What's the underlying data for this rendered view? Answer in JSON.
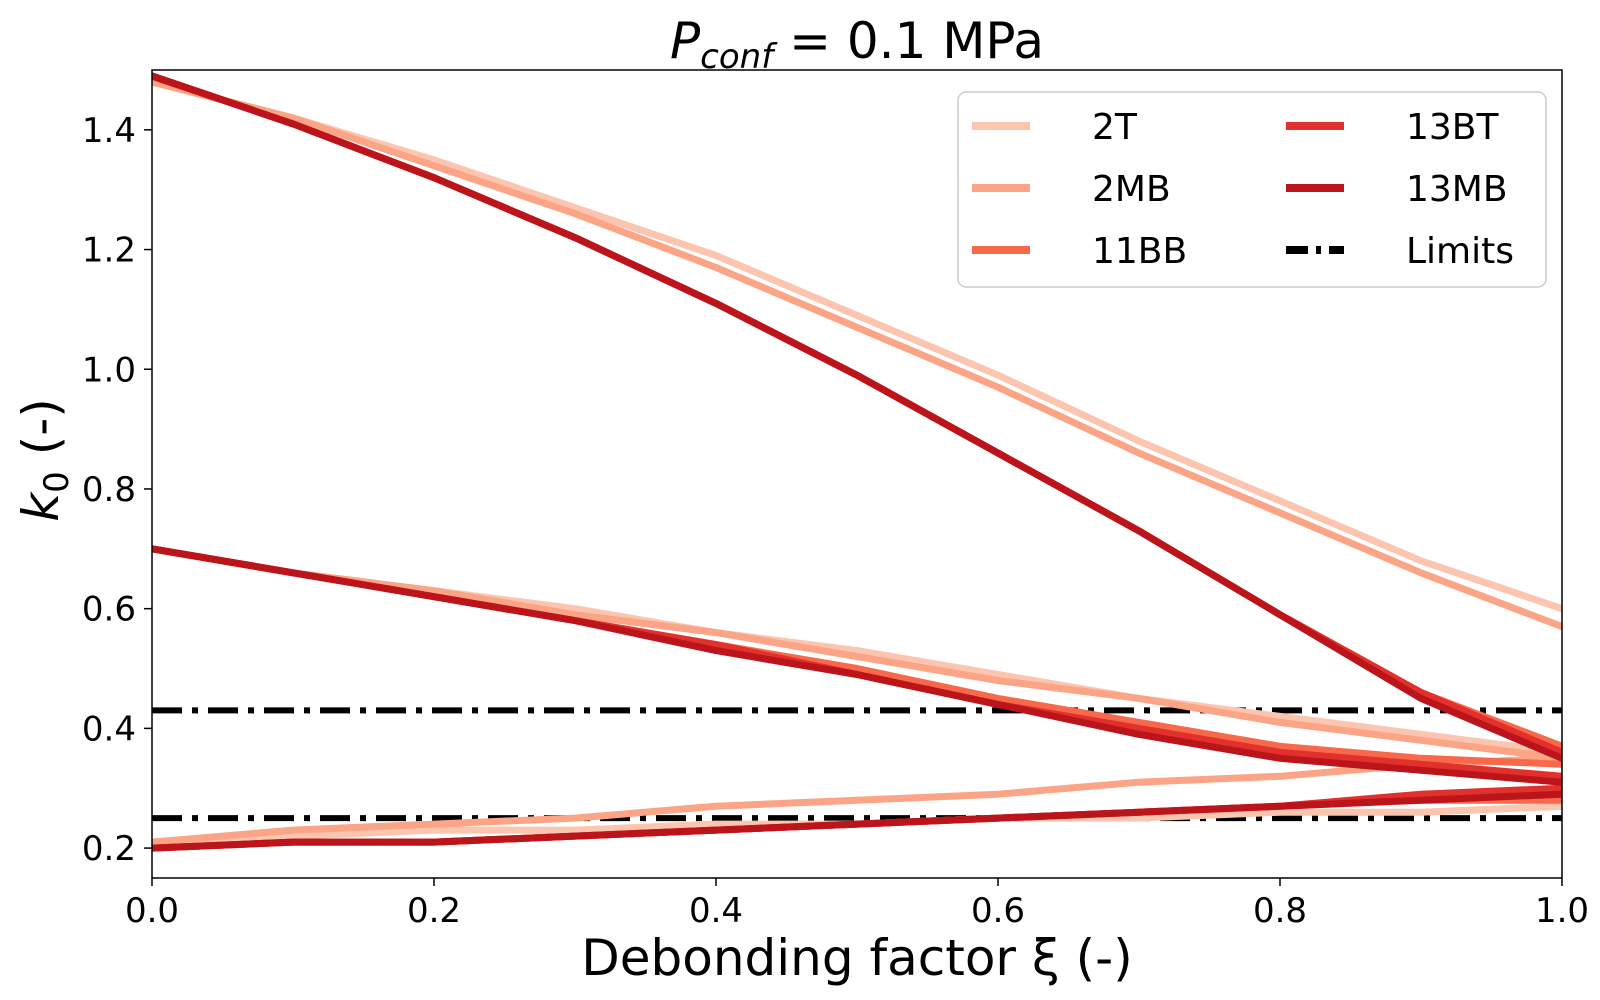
{
  "chart_data": {
    "type": "line",
    "title": {
      "main": "P",
      "subscript": "conf",
      "suffix": " = 0.1 MPa"
    },
    "xlabel": "Debonding factor ξ (-)",
    "ylabel": {
      "main": "k",
      "subscript": "0",
      "suffix": " (-)"
    },
    "xlim": [
      0.0,
      1.0
    ],
    "ylim": [
      0.15,
      1.5
    ],
    "xticks": [
      0.0,
      0.2,
      0.4,
      0.6,
      0.8,
      1.0
    ],
    "xtick_labels": [
      "0.0",
      "0.2",
      "0.4",
      "0.6",
      "0.8",
      "1.0"
    ],
    "yticks": [
      0.2,
      0.4,
      0.6,
      0.8,
      1.0,
      1.2,
      1.4
    ],
    "ytick_labels": [
      "0.2",
      "0.4",
      "0.6",
      "0.8",
      "1.0",
      "1.2",
      "1.4"
    ],
    "x": [
      0.0,
      0.1,
      0.2,
      0.3,
      0.4,
      0.5,
      0.6,
      0.7,
      0.8,
      0.9,
      1.0
    ],
    "legend_position": "top-right",
    "series": [
      {
        "name": "2T",
        "color": "#fcc5b0",
        "curves": [
          [
            1.48,
            1.42,
            1.35,
            1.27,
            1.19,
            1.09,
            0.99,
            0.88,
            0.78,
            0.68,
            0.6
          ],
          [
            0.7,
            0.66,
            0.63,
            0.6,
            0.56,
            0.53,
            0.49,
            0.45,
            0.42,
            0.39,
            0.36
          ],
          [
            0.21,
            0.22,
            0.23,
            0.23,
            0.24,
            0.24,
            0.25,
            0.25,
            0.26,
            0.26,
            0.27
          ]
        ]
      },
      {
        "name": "2MB",
        "color": "#fba486",
        "curves": [
          [
            1.48,
            1.42,
            1.34,
            1.26,
            1.17,
            1.07,
            0.97,
            0.86,
            0.76,
            0.66,
            0.57
          ],
          [
            0.7,
            0.66,
            0.63,
            0.59,
            0.56,
            0.52,
            0.48,
            0.45,
            0.41,
            0.38,
            0.35
          ],
          [
            0.21,
            0.23,
            0.24,
            0.25,
            0.27,
            0.28,
            0.29,
            0.31,
            0.32,
            0.34,
            0.35
          ]
        ]
      },
      {
        "name": "11BB",
        "color": "#f7694a",
        "curves": [
          [
            1.49,
            1.41,
            1.32,
            1.22,
            1.11,
            0.99,
            0.86,
            0.73,
            0.59,
            0.46,
            0.37
          ],
          [
            0.7,
            0.66,
            0.62,
            0.58,
            0.54,
            0.5,
            0.45,
            0.41,
            0.37,
            0.35,
            0.34
          ],
          [
            0.2,
            0.21,
            0.21,
            0.22,
            0.23,
            0.24,
            0.25,
            0.26,
            0.27,
            0.28,
            0.28
          ]
        ]
      },
      {
        "name": "13BT",
        "color": "#e2302d",
        "curves": [
          [
            1.49,
            1.41,
            1.32,
            1.22,
            1.11,
            0.99,
            0.86,
            0.73,
            0.59,
            0.46,
            0.36
          ],
          [
            0.7,
            0.66,
            0.62,
            0.58,
            0.54,
            0.49,
            0.44,
            0.4,
            0.36,
            0.34,
            0.32
          ],
          [
            0.2,
            0.21,
            0.21,
            0.22,
            0.23,
            0.24,
            0.25,
            0.26,
            0.27,
            0.29,
            0.3
          ]
        ]
      },
      {
        "name": "13MB",
        "color": "#bb151b",
        "curves": [
          [
            1.49,
            1.41,
            1.32,
            1.22,
            1.11,
            0.99,
            0.86,
            0.73,
            0.59,
            0.45,
            0.35
          ],
          [
            0.7,
            0.66,
            0.62,
            0.58,
            0.53,
            0.49,
            0.44,
            0.39,
            0.35,
            0.33,
            0.31
          ],
          [
            0.2,
            0.21,
            0.21,
            0.22,
            0.23,
            0.24,
            0.25,
            0.26,
            0.27,
            0.28,
            0.29
          ]
        ]
      }
    ],
    "limits": {
      "name": "Limits",
      "color": "#000000",
      "values": [
        0.43,
        0.25
      ]
    }
  }
}
